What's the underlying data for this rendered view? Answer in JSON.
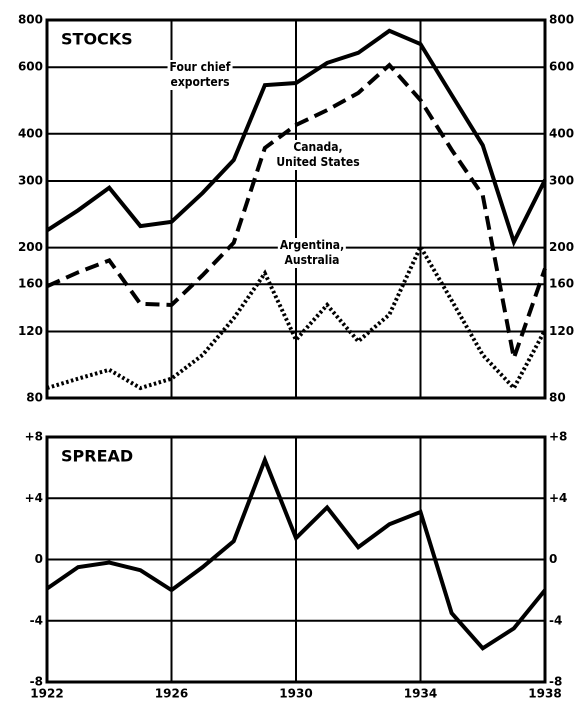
{
  "chart_data": [
    {
      "type": "line",
      "title": "STOCKS",
      "log_scale": true,
      "grid": true,
      "xtick_labels": false,
      "x": [
        1922,
        1923,
        1924,
        1925,
        1926,
        1927,
        1928,
        1929,
        1930,
        1931,
        1932,
        1933,
        1934,
        1935,
        1936,
        1937,
        1938
      ],
      "xlim": [
        1922,
        1938
      ],
      "xticks": [
        1922,
        1926,
        1930,
        1934,
        1938
      ],
      "ylim": [
        80,
        800
      ],
      "yticks": [
        80,
        120,
        160,
        200,
        300,
        400,
        600,
        800
      ],
      "series": [
        {
          "name": "Four chief\nexporters",
          "color": "#000000",
          "line_style": "solid",
          "values": [
            222,
            251,
            288,
            228,
            234,
            279,
            341,
            538,
            545,
            616,
            655,
            749,
            691,
            507,
            373,
            207,
            302
          ]
        },
        {
          "name": "Canada,\nUnited States",
          "color": "#000000",
          "line_style": "dashed",
          "values": [
            158,
            172,
            185,
            142,
            141,
            169,
            206,
            367,
            422,
            462,
            513,
            608,
            491,
            363,
            275,
            102,
            176
          ]
        },
        {
          "name": "Argentina,\nAustralia",
          "color": "#000000",
          "line_style": "dotted",
          "values": [
            85,
            90,
            95,
            85,
            90,
            104,
            130,
            171,
            114,
            141,
            113,
            133,
            201,
            145,
            104,
            85,
            121
          ]
        }
      ]
    },
    {
      "type": "line",
      "title": "SPREAD",
      "log_scale": false,
      "grid": true,
      "xtick_labels": true,
      "x": [
        1922,
        1923,
        1924,
        1925,
        1926,
        1927,
        1928,
        1929,
        1930,
        1931,
        1932,
        1933,
        1934,
        1935,
        1936,
        1937,
        1938
      ],
      "xlim": [
        1922,
        1938
      ],
      "xticks": [
        1922,
        1926,
        1930,
        1934,
        1938
      ],
      "ylim": [
        -8,
        8
      ],
      "yticks": [
        {
          "value": 8,
          "label": "+8"
        },
        {
          "value": 4,
          "label": "+4"
        },
        0,
        -4,
        -8
      ],
      "series": [
        {
          "name": "Spread",
          "color": "#000000",
          "line_style": "solid",
          "values": [
            -1.9,
            -0.5,
            -0.2,
            -0.7,
            -2.0,
            -0.5,
            1.2,
            6.5,
            1.4,
            3.4,
            0.8,
            2.3,
            3.1,
            -3.5,
            -5.8,
            -4.5,
            -2.0
          ]
        }
      ]
    }
  ]
}
